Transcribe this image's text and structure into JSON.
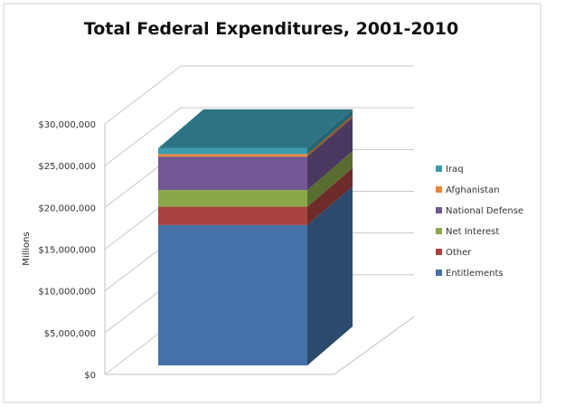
{
  "chart_data": {
    "type": "bar",
    "subtype": "3d-stacked-column",
    "title": "Total Federal Expenditures, 2001-2010",
    "ylabel": "Millions",
    "xlabel": "",
    "ylim": [
      0,
      30000000
    ],
    "yticks": [
      0,
      5000000,
      10000000,
      15000000,
      20000000,
      25000000,
      30000000
    ],
    "ytick_labels": [
      "$0",
      "$5,000,000",
      "$10,000,000",
      "$15,000,000",
      "$20,000,000",
      "$25,000,000",
      "$30,000,000"
    ],
    "grid": true,
    "legend_position": "right",
    "series": [
      {
        "name": "Entitlements",
        "values": [
          16800000
        ],
        "color": "#4472a8"
      },
      {
        "name": "Other",
        "values": [
          2200000
        ],
        "color": "#a8423f"
      },
      {
        "name": "Net Interest",
        "values": [
          2000000
        ],
        "color": "#8aa84a"
      },
      {
        "name": "National Defense",
        "values": [
          4000000
        ],
        "color": "#715894"
      },
      {
        "name": "Afghanistan",
        "values": [
          300000
        ],
        "color": "#e8873a"
      },
      {
        "name": "Iraq",
        "values": [
          700000
        ],
        "color": "#3a9bb0"
      }
    ]
  }
}
